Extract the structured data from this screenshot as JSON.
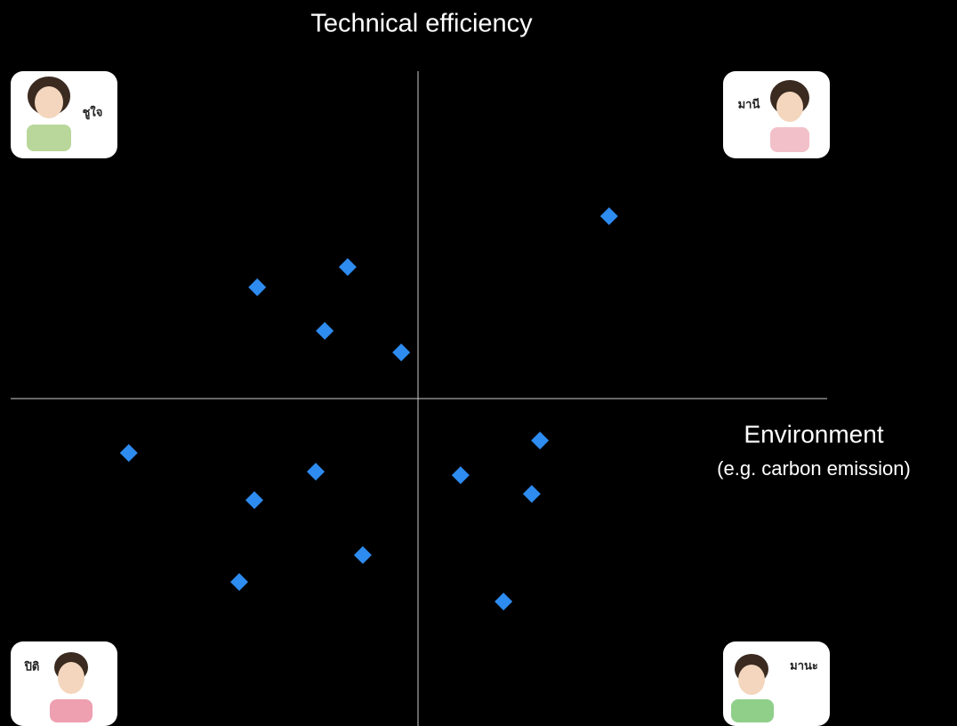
{
  "chart_data": {
    "type": "scatter",
    "title": "Technical efficiency",
    "x_label": "Environment",
    "x_sublabel": "(e.g. carbon emission)",
    "annotations": [
      "ชูใจ",
      "มานี",
      "ปิติ",
      "มานะ"
    ],
    "x": [
      4.67,
      -1.72,
      -3.93,
      -2.28,
      -0.41,
      -7.07,
      -2.5,
      -4.0,
      -1.35,
      -4.37,
      2.98,
      1.04,
      2.78,
      2.09
    ],
    "values": [
      5.57,
      4.02,
      3.4,
      2.07,
      1.41,
      -1.66,
      -2.23,
      -3.1,
      -4.78,
      -5.6,
      -1.28,
      -2.34,
      -2.91,
      -6.2
    ],
    "color": "#2e8bef",
    "xlim": [
      -10,
      10
    ],
    "ylim": [
      -10,
      10
    ]
  }
}
